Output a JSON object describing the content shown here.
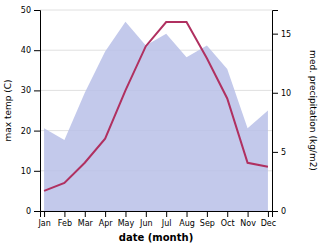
{
  "chart_data": {
    "type": "line",
    "categories": [
      "Jan",
      "Feb",
      "Mar",
      "Apr",
      "May",
      "Jun",
      "Jul",
      "Aug",
      "Sep",
      "Oct",
      "Nov",
      "Dec"
    ],
    "x_label": "date (month)",
    "y_label": "max temp (C)",
    "y2_label": "med. precipitation (kg/m2)",
    "ylim": [
      0,
      50
    ],
    "yticks": [
      0,
      10,
      20,
      30,
      40,
      50
    ],
    "y2lim": [
      0,
      17
    ],
    "y2ticks": [
      0,
      5,
      10,
      15
    ],
    "grid": true,
    "series": [
      {
        "type": "area",
        "axis": "y2",
        "color": "#b8c0e8",
        "values": [
          7,
          6,
          10,
          13.5,
          16,
          14,
          15,
          13,
          14,
          12,
          7,
          8.5
        ]
      },
      {
        "type": "line",
        "color": "#b03060",
        "values": [
          5,
          7,
          12,
          18,
          30,
          41,
          47,
          47,
          38,
          28,
          12,
          11
        ]
      }
    ]
  }
}
